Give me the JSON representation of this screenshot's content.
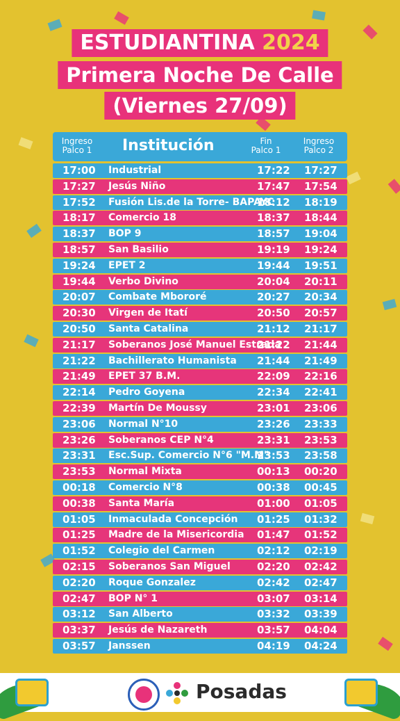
{
  "title": {
    "line1_text": "ESTUDIANTINA",
    "line1_year": "2024",
    "line2": "Primera Noche De Calle",
    "line3": "(Viernes 27/09)"
  },
  "table_header": {
    "ingreso_palco1": "Ingreso Palco 1",
    "institucion": "Institución",
    "fin_palco1": "Fin Palco 1",
    "ingreso_palco2": "Ingreso Palco 2"
  },
  "rows": [
    {
      "ingreso1": "17:00",
      "institucion": "Industrial",
      "fin1": "17:22",
      "ingreso2": "17:27"
    },
    {
      "ingreso1": "17:27",
      "institucion": "Jesús Niño",
      "fin1": "17:47",
      "ingreso2": "17:54"
    },
    {
      "ingreso1": "17:52",
      "institucion": "Fusión Lis.de la Torre- BAPAYC",
      "fin1": "18:12",
      "ingreso2": "18:19"
    },
    {
      "ingreso1": "18:17",
      "institucion": "Comercio 18",
      "fin1": "18:37",
      "ingreso2": "18:44"
    },
    {
      "ingreso1": "18:37",
      "institucion": "BOP 9",
      "fin1": "18:57",
      "ingreso2": "19:04"
    },
    {
      "ingreso1": "18:57",
      "institucion": "San Basilio",
      "fin1": "19:19",
      "ingreso2": "19:24"
    },
    {
      "ingreso1": "19:24",
      "institucion": "EPET 2",
      "fin1": "19:44",
      "ingreso2": "19:51"
    },
    {
      "ingreso1": "19:44",
      "institucion": "Verbo Divino",
      "fin1": "20:04",
      "ingreso2": "20:11"
    },
    {
      "ingreso1": "20:07",
      "institucion": "Combate Mbororé",
      "fin1": "20:27",
      "ingreso2": "20:34"
    },
    {
      "ingreso1": "20:30",
      "institucion": "Virgen de Itatí",
      "fin1": "20:50",
      "ingreso2": "20:57"
    },
    {
      "ingreso1": "20:50",
      "institucion": "Santa Catalina",
      "fin1": "21:12",
      "ingreso2": "21:17"
    },
    {
      "ingreso1": "21:17",
      "institucion": "Soberanos José Manuel Estrada",
      "fin1": "21:22",
      "ingreso2": "21:44"
    },
    {
      "ingreso1": "21:22",
      "institucion": "Bachillerato Humanista",
      "fin1": "21:44",
      "ingreso2": "21:49"
    },
    {
      "ingreso1": "21:49",
      "institucion": "EPET 37 B.M.",
      "fin1": "22:09",
      "ingreso2": "22:16"
    },
    {
      "ingreso1": "22:14",
      "institucion": "Pedro Goyena",
      "fin1": "22:34",
      "ingreso2": "22:41"
    },
    {
      "ingreso1": "22:39",
      "institucion": "Martín De Moussy",
      "fin1": "23:01",
      "ingreso2": "23:06"
    },
    {
      "ingreso1": "23:06",
      "institucion": "Normal N°10",
      "fin1": "23:26",
      "ingreso2": "23:33"
    },
    {
      "ingreso1": "23:26",
      "institucion": "Soberanos CEP N°4",
      "fin1": "23:31",
      "ingreso2": "23:53"
    },
    {
      "ingreso1": "23:31",
      "institucion": "Esc.Sup. Comercio N°6 \"M.M\"",
      "fin1": "23:53",
      "ingreso2": "23:58"
    },
    {
      "ingreso1": "23:53",
      "institucion": "Normal Mixta",
      "fin1": "00:13",
      "ingreso2": "00:20"
    },
    {
      "ingreso1": "00:18",
      "institucion": "Comercio N°8",
      "fin1": "00:38",
      "ingreso2": "00:45"
    },
    {
      "ingreso1": "00:38",
      "institucion": "Santa María",
      "fin1": "01:00",
      "ingreso2": "01:05"
    },
    {
      "ingreso1": "01:05",
      "institucion": "Inmaculada Concepción",
      "fin1": "01:25",
      "ingreso2": "01:32"
    },
    {
      "ingreso1": "01:25",
      "institucion": "Madre de la Misericordia",
      "fin1": "01:47",
      "ingreso2": "01:52"
    },
    {
      "ingreso1": "01:52",
      "institucion": "Colegio del Carmen",
      "fin1": "02:12",
      "ingreso2": "02:19"
    },
    {
      "ingreso1": "02:15",
      "institucion": "Soberanos San Miguel",
      "fin1": "02:20",
      "ingreso2": "02:42"
    },
    {
      "ingreso1": "02:20",
      "institucion": "Roque Gonzalez",
      "fin1": "02:42",
      "ingreso2": "02:47"
    },
    {
      "ingreso1": "02:47",
      "institucion": "BOP N° 1",
      "fin1": "03:07",
      "ingreso2": "03:14"
    },
    {
      "ingreso1": "03:12",
      "institucion": "San Alberto",
      "fin1": "03:32",
      "ingreso2": "03:39"
    },
    {
      "ingreso1": "03:37",
      "institucion": "Jesús de Nazareth",
      "fin1": "03:57",
      "ingreso2": "04:04"
    },
    {
      "ingreso1": "03:57",
      "institucion": "Janssen",
      "fin1": "04:19",
      "ingreso2": "04:24"
    }
  ],
  "footer": {
    "brand": "Posadas",
    "icons": [
      "drum-icon",
      "leaf-icon",
      "municipal-seal-icon",
      "posadas-logo-icon"
    ]
  },
  "colors": {
    "background": "#e3c22f",
    "pink": "#e8327a",
    "blue": "#3aa8d8",
    "year": "#f2d24a"
  }
}
